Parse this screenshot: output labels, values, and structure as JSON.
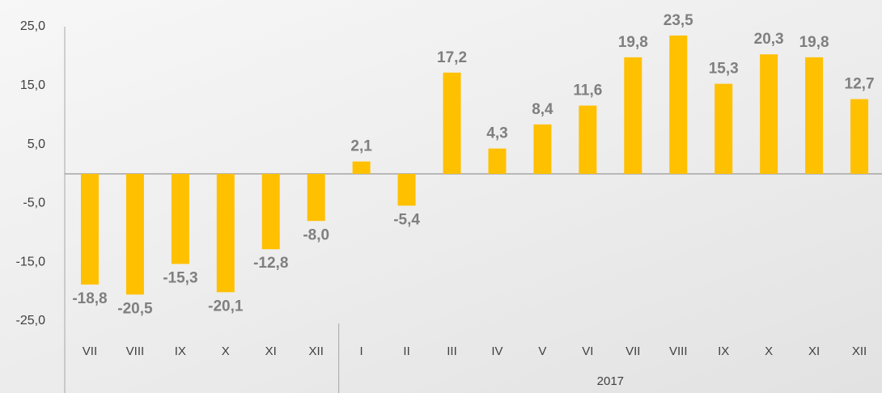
{
  "chart_data": {
    "type": "bar",
    "groups": [
      {
        "label": null,
        "categories": [
          "VII",
          "VIII",
          "IX",
          "X",
          "XI",
          "XII"
        ]
      },
      {
        "label": "2017",
        "categories": [
          "I",
          "II",
          "III",
          "IV",
          "V",
          "VI",
          "VII",
          "VIII",
          "IX",
          "X",
          "XI",
          "XII"
        ]
      }
    ],
    "values": [
      -18.8,
      -20.5,
      -15.3,
      -20.1,
      -12.8,
      -8.0,
      2.1,
      -5.4,
      17.2,
      4.3,
      8.4,
      11.6,
      19.8,
      23.5,
      15.3,
      20.3,
      19.8,
      12.7
    ],
    "value_labels": [
      "-18,8",
      "-20,5",
      "-15,3",
      "-20,1",
      "-12,8",
      "-8,0",
      "2,1",
      "-5,4",
      "17,2",
      "4,3",
      "8,4",
      "11,6",
      "19,8",
      "23,5",
      "15,3",
      "20,3",
      "19,8",
      "12,7"
    ],
    "color": "#ffc000",
    "ylim": [
      -25,
      25
    ],
    "yticks": [
      {
        "value": 25,
        "label": "25,0"
      },
      {
        "value": 15,
        "label": "15,0"
      },
      {
        "value": 5,
        "label": "5,0"
      },
      {
        "value": -5,
        "label": "-5,0"
      },
      {
        "value": -15,
        "label": "-15,0"
      },
      {
        "value": -25,
        "label": "-25,0"
      }
    ]
  }
}
